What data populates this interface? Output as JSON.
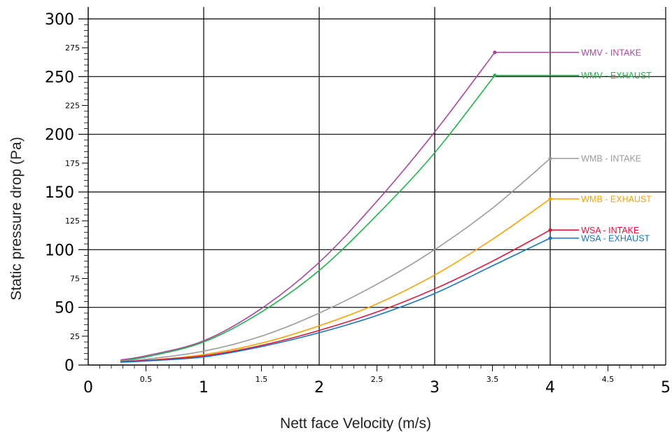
{
  "chart_data": {
    "type": "line",
    "xlabel": "Nett face Velocity (m/s)",
    "ylabel": "Static pressure drop (Pa)",
    "xlim": [
      0,
      5
    ],
    "ylim": [
      0,
      300
    ],
    "grid": true,
    "x_major_ticks": [
      "0",
      "1",
      "2",
      "3",
      "4",
      "5"
    ],
    "x_minor_ticks": [
      "0.5",
      "1.5",
      "2.5",
      "3.5",
      "4.5"
    ],
    "y_major_ticks": [
      "0",
      "50",
      "100",
      "150",
      "200",
      "250",
      "300"
    ],
    "y_minor_ticks": [
      "25",
      "75",
      "125",
      "175",
      "225",
      "275"
    ],
    "series": [
      {
        "name": "WMV - INTAKE",
        "color": "#a6479c",
        "x": [
          0.28,
          0.5,
          1.0,
          1.5,
          2.0,
          2.5,
          3.0,
          3.52
        ],
        "y": [
          4.5,
          8,
          21,
          49,
          89,
          142,
          202,
          271
        ],
        "label_x_end": 4.25
      },
      {
        "name": "WMV - EXHAUST",
        "color": "#21b24b",
        "x": [
          0.28,
          0.5,
          1.0,
          1.5,
          2.0,
          2.5,
          3.0,
          3.52
        ],
        "y": [
          4,
          7,
          20,
          46,
          82,
          130,
          184,
          251
        ],
        "label_x_end": 4.25
      },
      {
        "name": "WMB - INTAKE",
        "color": "#9b9b9b",
        "x": [
          0.28,
          0.5,
          1.0,
          1.5,
          2.0,
          2.5,
          3.0,
          3.5,
          4.0
        ],
        "y": [
          3.5,
          5,
          12,
          25,
          45,
          70,
          100,
          136,
          179
        ],
        "label_x_end": 4.25
      },
      {
        "name": "WMB - EXHAUST",
        "color": "#f5a300",
        "x": [
          0.28,
          0.5,
          1.0,
          1.5,
          2.0,
          2.5,
          3.0,
          3.5,
          4.0
        ],
        "y": [
          3,
          4,
          9,
          19,
          34,
          53,
          78,
          109,
          144
        ],
        "label_x_end": 4.25
      },
      {
        "name": "WSA - INTAKE",
        "color": "#dd1438",
        "x": [
          0.28,
          0.5,
          1.0,
          1.5,
          2.0,
          2.5,
          3.0,
          3.5,
          4.0
        ],
        "y": [
          3,
          4,
          8,
          17,
          30,
          46,
          66,
          90,
          117
        ],
        "label_x_end": 4.25
      },
      {
        "name": "WSA - EXHAUST",
        "color": "#1874c1",
        "x": [
          0.28,
          0.5,
          1.0,
          1.5,
          2.0,
          2.5,
          3.0,
          3.5,
          4.0
        ],
        "y": [
          2.5,
          3.5,
          7,
          16,
          28,
          43,
          62,
          86,
          110
        ],
        "label_x_end": 4.25
      }
    ]
  }
}
